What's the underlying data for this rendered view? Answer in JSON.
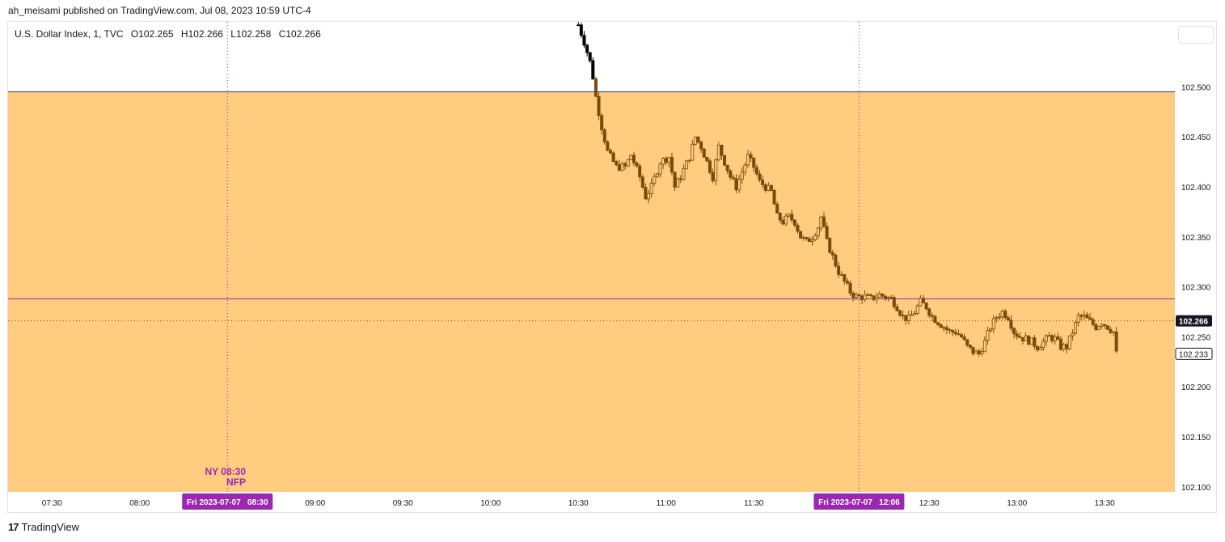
{
  "header": {
    "published": "ah_meisami published on TradingView.com, Jul 08, 2023 10:59 UTC-4"
  },
  "legend": {
    "symbol": "U.S. Dollar Index, 1, TVC",
    "open": "O102.265",
    "high": "H102.266",
    "low": "L102.258",
    "close": "C102.266"
  },
  "annotations": {
    "session_label": "NY 08:30",
    "event_label": "NFP",
    "cursor_left_label": "Fri 2023-07-07   08:30",
    "cursor_right_label": "Fri 2023-07-07   12:06"
  },
  "footer": {
    "brand": "TradingView",
    "logo": "tradingview-logo-icon"
  },
  "colors": {
    "zone_fill": "#ffcc80",
    "candle": "#7a4a0a",
    "candle_above": "#000000",
    "upper_line": "#1e3a8a",
    "mid_line": "#9c27b0",
    "cursor": "#9c27b0",
    "price_tag": "#131722",
    "time_tag": "#9c27b0"
  },
  "chart_data": {
    "type": "candlestick",
    "symbol": "U.S. Dollar Index",
    "interval": "1",
    "x_ticks": [
      "07:30",
      "08:00",
      "09:00",
      "09:30",
      "10:00",
      "10:30",
      "11:00",
      "11:30",
      "12:30",
      "13:00",
      "13:30"
    ],
    "y_ticks": [
      "102.500",
      "102.450",
      "102.400",
      "102.350",
      "102.300",
      "102.250",
      "102.200",
      "102.150",
      "102.100"
    ],
    "ylim": [
      102.095,
      102.565
    ],
    "xlim": [
      "07:15",
      "13:54"
    ],
    "zone": {
      "top": 102.495,
      "bottom": 102.095
    },
    "horizontal_lines": [
      102.495,
      102.288
    ],
    "current_price": "102.266",
    "cursor_price": "102.233",
    "cursor_times": [
      "08:30",
      "12:06"
    ],
    "close_path": [
      [
        "10:30",
        102.562
      ],
      [
        "10:32",
        102.545
      ],
      [
        "10:34",
        102.525
      ],
      [
        "10:35",
        102.51
      ],
      [
        "10:36",
        102.49
      ],
      [
        "10:38",
        102.46
      ],
      [
        "10:40",
        102.435
      ],
      [
        "10:43",
        102.42
      ],
      [
        "10:46",
        102.42
      ],
      [
        "10:48",
        102.432
      ],
      [
        "10:51",
        102.41
      ],
      [
        "10:53",
        102.39
      ],
      [
        "10:55",
        102.4
      ],
      [
        "10:58",
        102.425
      ],
      [
        "11:01",
        102.43
      ],
      [
        "11:03",
        102.4
      ],
      [
        "11:05",
        102.41
      ],
      [
        "11:08",
        102.43
      ],
      [
        "11:10",
        102.45
      ],
      [
        "11:12",
        102.44
      ],
      [
        "11:14",
        102.425
      ],
      [
        "11:16",
        102.41
      ],
      [
        "11:18",
        102.44
      ],
      [
        "11:20",
        102.425
      ],
      [
        "11:22",
        102.41
      ],
      [
        "11:24",
        102.4
      ],
      [
        "11:26",
        102.415
      ],
      [
        "11:28",
        102.43
      ],
      [
        "11:30",
        102.42
      ],
      [
        "11:32",
        102.405
      ],
      [
        "11:34",
        102.4
      ],
      [
        "11:36",
        102.395
      ],
      [
        "11:38",
        102.37
      ],
      [
        "11:40",
        102.365
      ],
      [
        "11:42",
        102.37
      ],
      [
        "11:44",
        102.365
      ],
      [
        "11:46",
        102.35
      ],
      [
        "11:48",
        102.345
      ],
      [
        "11:50",
        102.35
      ],
      [
        "11:52",
        102.36
      ],
      [
        "11:53",
        102.37
      ],
      [
        "11:55",
        102.345
      ],
      [
        "11:57",
        102.33
      ],
      [
        "11:59",
        102.315
      ],
      [
        "12:01",
        102.305
      ],
      [
        "12:03",
        102.295
      ],
      [
        "12:05",
        102.29
      ],
      [
        "12:08",
        102.29
      ],
      [
        "12:10",
        102.288
      ],
      [
        "12:13",
        102.292
      ],
      [
        "12:15",
        102.29
      ],
      [
        "12:17",
        102.288
      ],
      [
        "12:19",
        102.28
      ],
      [
        "12:21",
        102.27
      ],
      [
        "12:23",
        102.268
      ],
      [
        "12:25",
        102.275
      ],
      [
        "12:27",
        102.285
      ],
      [
        "12:29",
        102.28
      ],
      [
        "12:31",
        102.27
      ],
      [
        "12:33",
        102.265
      ],
      [
        "12:35",
        102.26
      ],
      [
        "12:37",
        102.255
      ],
      [
        "12:39",
        102.255
      ],
      [
        "12:41",
        102.25
      ],
      [
        "12:43",
        102.24
      ],
      [
        "12:45",
        102.235
      ],
      [
        "12:47",
        102.233
      ],
      [
        "12:49",
        102.245
      ],
      [
        "12:51",
        102.26
      ],
      [
        "12:53",
        102.27
      ],
      [
        "12:55",
        102.275
      ],
      [
        "12:57",
        102.27
      ],
      [
        "12:59",
        102.255
      ],
      [
        "13:01",
        102.25
      ],
      [
        "13:03",
        102.248
      ],
      [
        "13:05",
        102.245
      ],
      [
        "13:07",
        102.24
      ],
      [
        "13:09",
        102.245
      ],
      [
        "13:11",
        102.25
      ],
      [
        "13:13",
        102.248
      ],
      [
        "13:15",
        102.24
      ],
      [
        "13:17",
        102.24
      ],
      [
        "13:19",
        102.255
      ],
      [
        "13:21",
        102.27
      ],
      [
        "13:23",
        102.27
      ],
      [
        "13:25",
        102.265
      ],
      [
        "13:27",
        102.26
      ],
      [
        "13:29",
        102.265
      ],
      [
        "13:31",
        102.26
      ],
      [
        "13:33",
        102.255
      ],
      [
        "13:34",
        102.233
      ]
    ]
  }
}
